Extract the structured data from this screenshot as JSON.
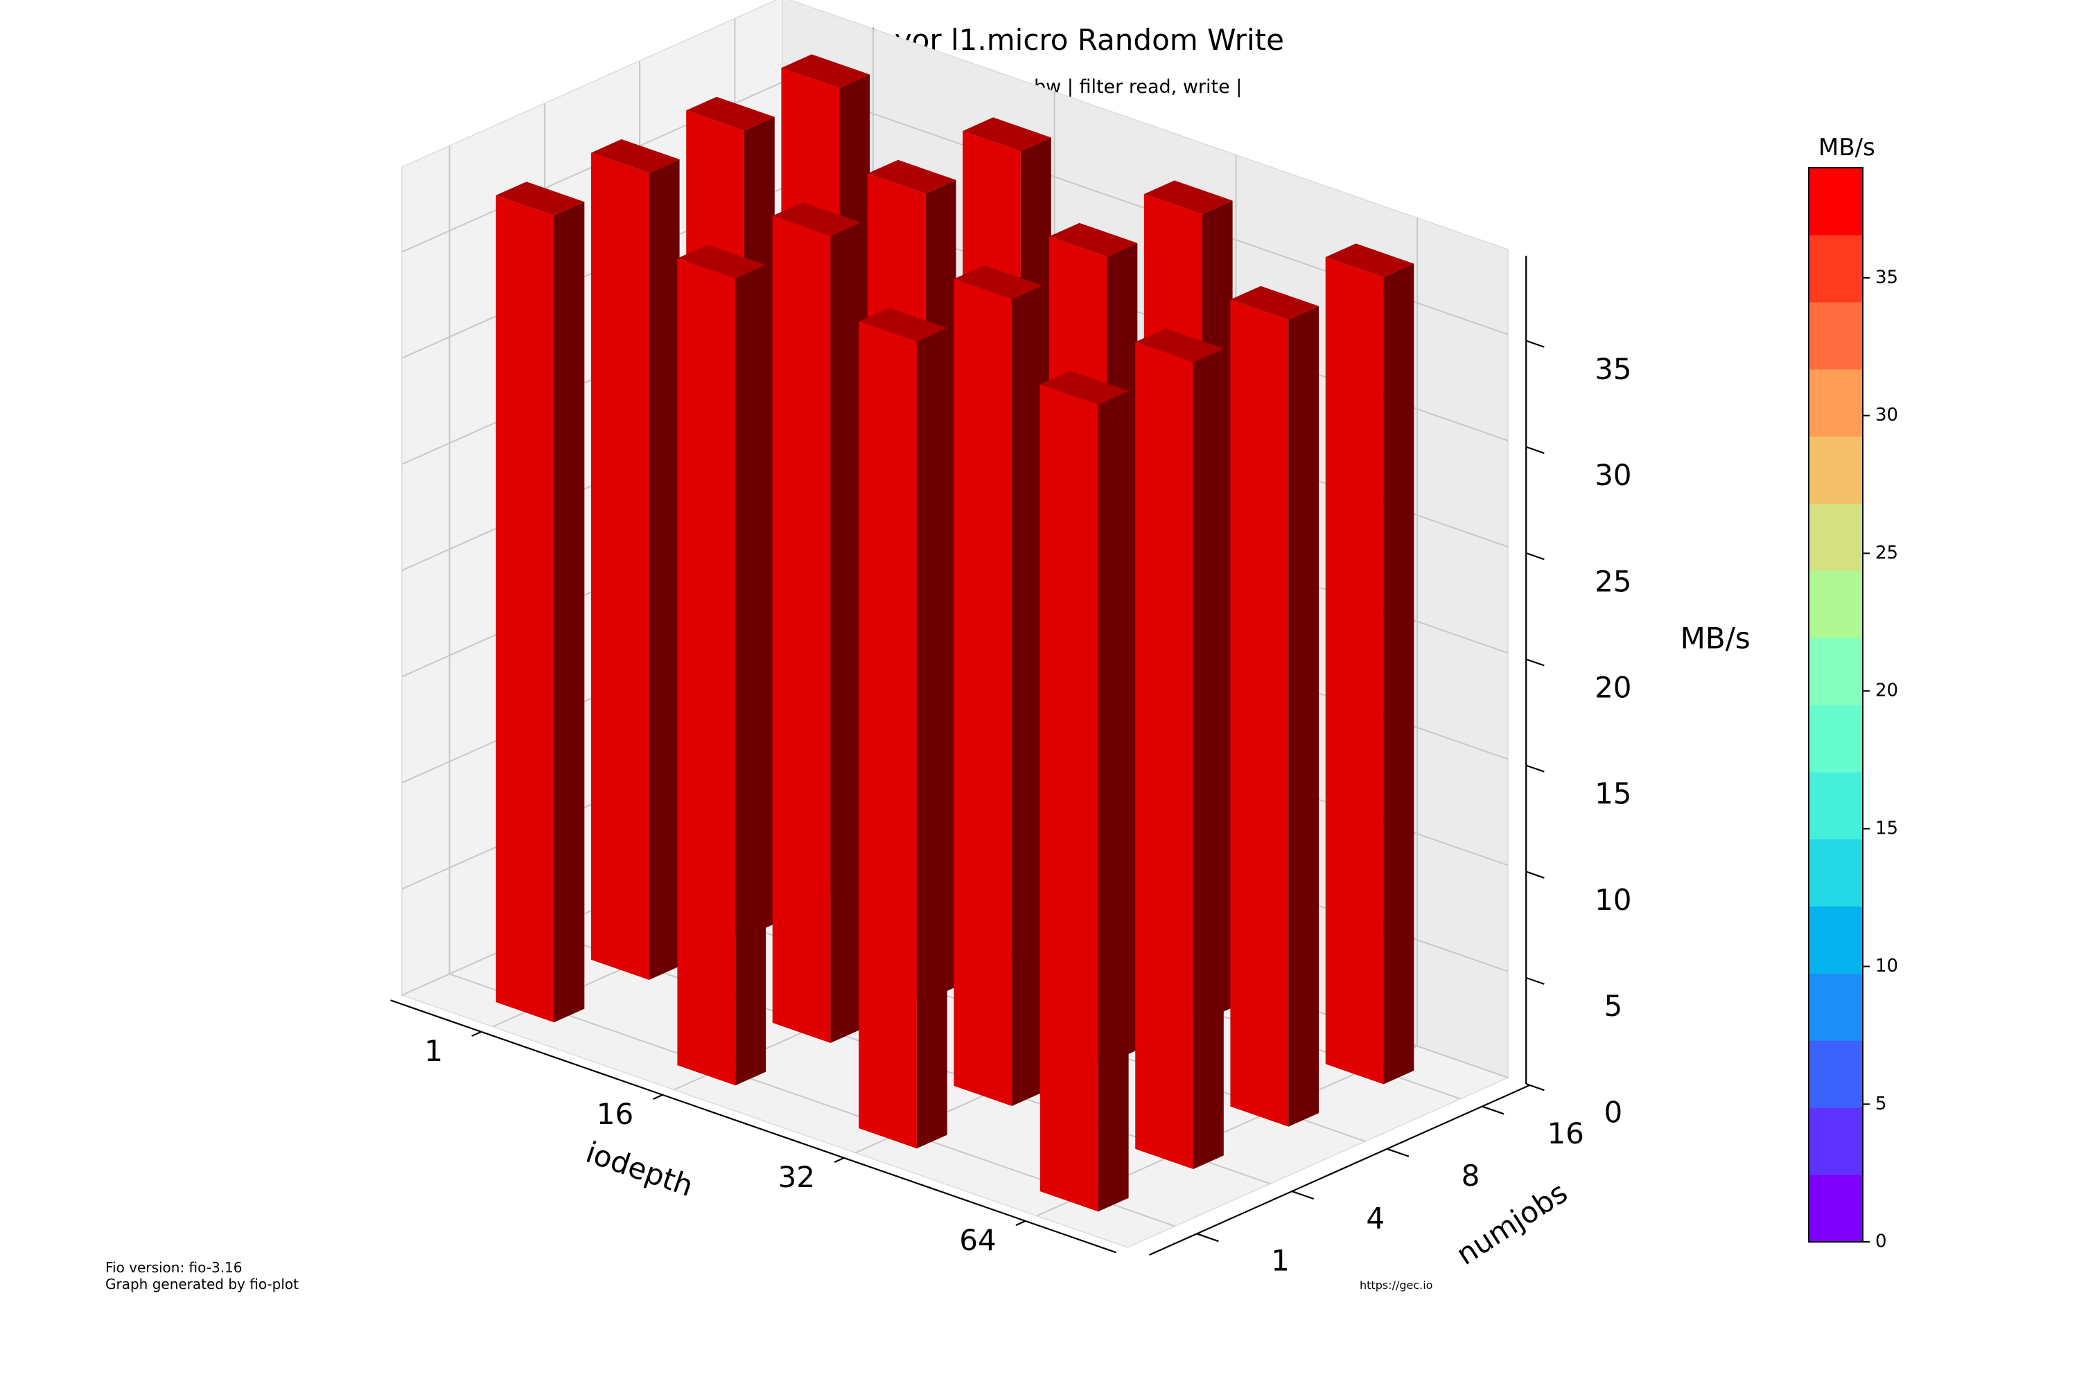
{
  "chart_data": {
    "type": "bar3d",
    "title": "BW Flavor l1.micro Random Write",
    "subtitle": "| rw randwrite | type bw | filter read, write |",
    "xlabel": "iodepth",
    "ylabel": "numjobs",
    "zlabel": "MB/s",
    "x_categories": [
      "1",
      "16",
      "32",
      "64"
    ],
    "y_categories": [
      "1",
      "4",
      "8",
      "16"
    ],
    "zlim": [
      0,
      39
    ],
    "z_ticks": [
      "0",
      "5",
      "10",
      "15",
      "20",
      "25",
      "30",
      "35"
    ],
    "grid": true,
    "bar_color": "#e00000",
    "values": [
      [
        38,
        38,
        38,
        38
      ],
      [
        38,
        38,
        38,
        38
      ],
      [
        38,
        38,
        38,
        38
      ],
      [
        38,
        38,
        38,
        38
      ]
    ],
    "colorbar": {
      "label": "MB/s",
      "ticks": [
        "0",
        "5",
        "10",
        "15",
        "20",
        "25",
        "30",
        "35"
      ],
      "min": 0,
      "max": 39,
      "colors": [
        "#7f00ff",
        "#5e32fe",
        "#3d62fb",
        "#1b8ff7",
        "#05b4ef",
        "#24d8e5",
        "#46efda",
        "#67fcce",
        "#86fec0",
        "#b0f893",
        "#d4e081",
        "#f4c06a",
        "#ff9c56",
        "#ff6d3f",
        "#ff3b1f",
        "#ff0000"
      ]
    }
  },
  "footer": {
    "fio_version": "Fio version: fio-3.16",
    "generated_by": "Graph generated by fio-plot",
    "url": "https://gec.io"
  }
}
